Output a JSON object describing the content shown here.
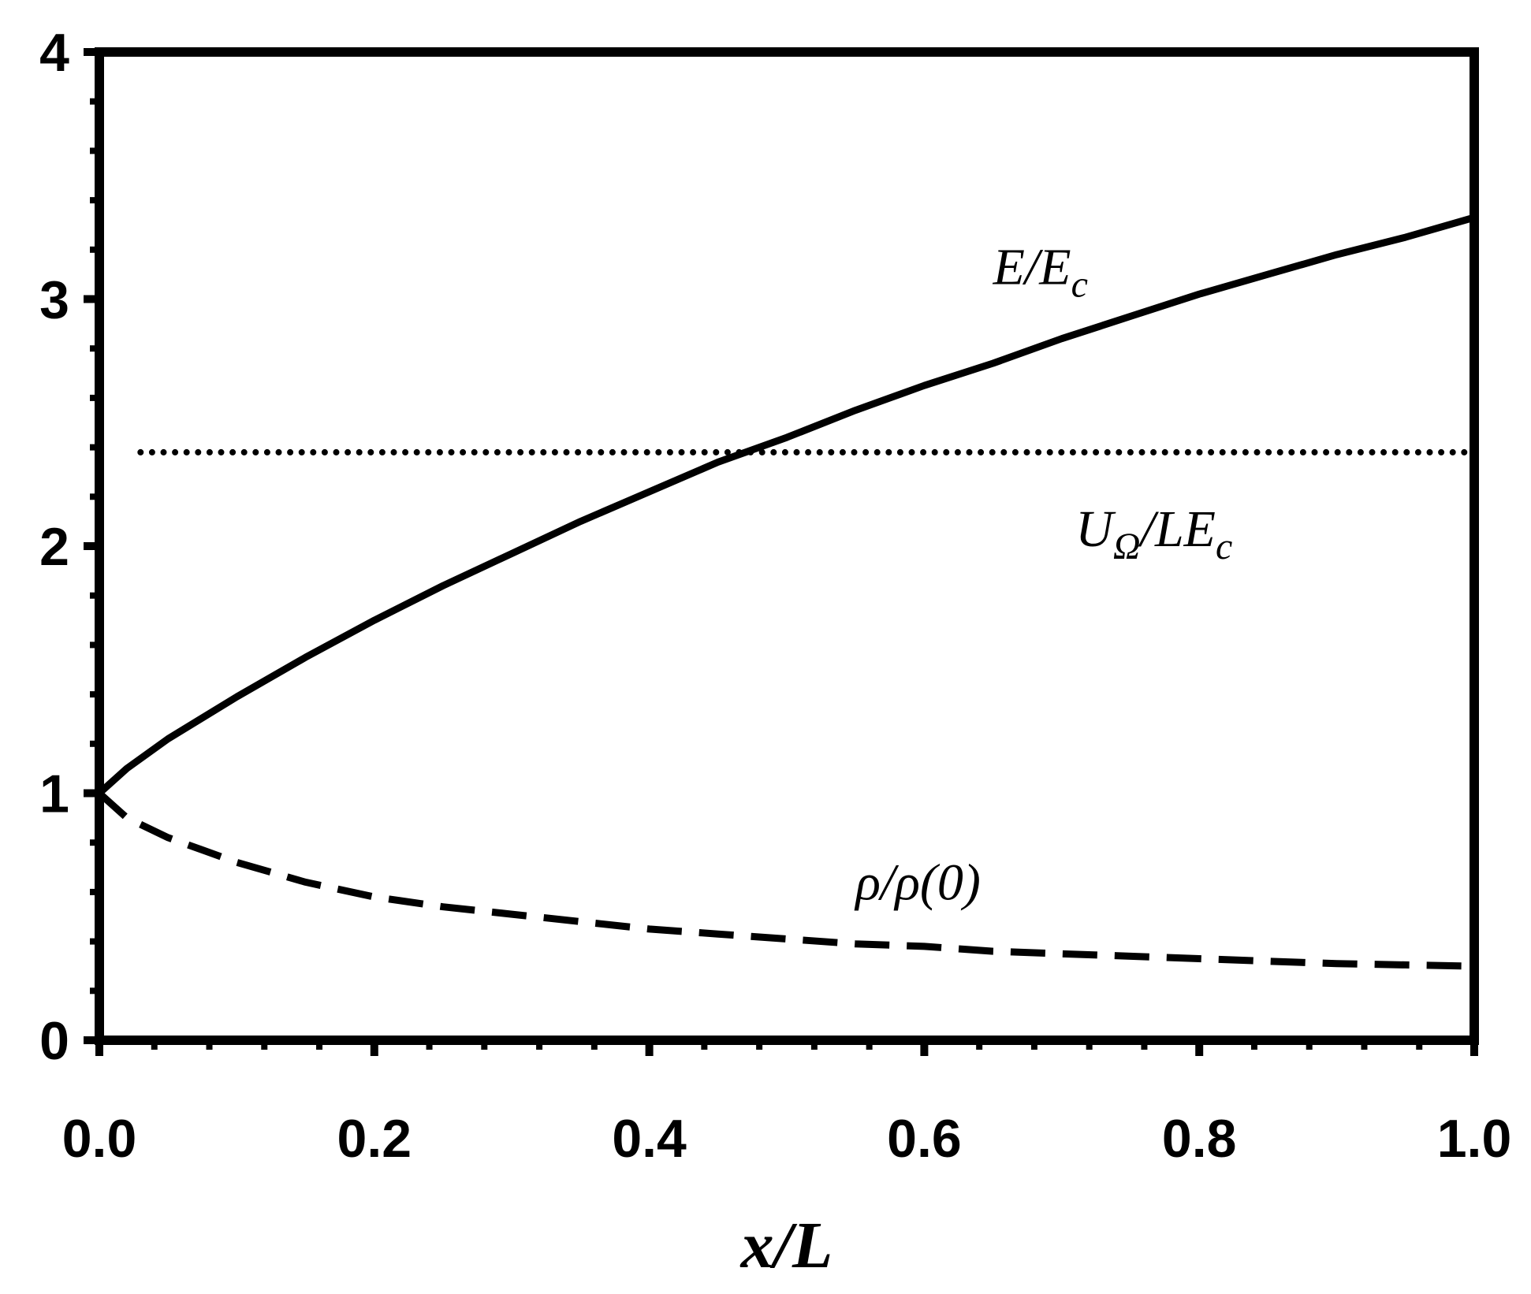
{
  "chart_data": {
    "type": "line",
    "xlabel": "x/L",
    "ylabel": "",
    "xlim": [
      0,
      1
    ],
    "ylim": [
      0,
      4
    ],
    "x_ticks": [
      "0.0",
      "0.2",
      "0.4",
      "0.6",
      "0.8",
      "1.0"
    ],
    "y_ticks": [
      "0",
      "1",
      "2",
      "3",
      "4"
    ],
    "grid": false,
    "series": [
      {
        "style": "solid",
        "color": "#000000",
        "x": [
          0,
          0.02,
          0.05,
          0.1,
          0.15,
          0.2,
          0.25,
          0.3,
          0.35,
          0.4,
          0.45,
          0.5,
          0.55,
          0.6,
          0.65,
          0.7,
          0.75,
          0.8,
          0.85,
          0.9,
          0.95,
          1.0
        ],
        "y": [
          1.0,
          1.1,
          1.22,
          1.39,
          1.55,
          1.7,
          1.84,
          1.97,
          2.1,
          2.22,
          2.34,
          2.44,
          2.55,
          2.65,
          2.74,
          2.84,
          2.93,
          3.02,
          3.1,
          3.18,
          3.25,
          3.33
        ]
      },
      {
        "style": "dotted",
        "color": "#000000",
        "x": [
          0.03,
          1.0
        ],
        "y": [
          2.38,
          2.38
        ]
      },
      {
        "style": "dashed",
        "color": "#000000",
        "x": [
          0,
          0.02,
          0.05,
          0.1,
          0.15,
          0.2,
          0.25,
          0.3,
          0.35,
          0.4,
          0.45,
          0.5,
          0.55,
          0.6,
          0.65,
          0.7,
          0.75,
          0.8,
          0.85,
          0.9,
          0.95,
          1.0
        ],
        "y": [
          1.0,
          0.9,
          0.82,
          0.72,
          0.64,
          0.58,
          0.54,
          0.51,
          0.48,
          0.45,
          0.43,
          0.41,
          0.39,
          0.38,
          0.36,
          0.35,
          0.34,
          0.33,
          0.32,
          0.31,
          0.305,
          0.3
        ]
      }
    ],
    "annotations": [
      {
        "main": "E/E",
        "sub": "c",
        "tail": "",
        "x": 0.65,
        "y": 3.06
      },
      {
        "main": "U",
        "sub": "Ω",
        "tail": "/LE",
        "sub2": "c",
        "x": 0.71,
        "y": 2.0
      },
      {
        "main": "ρ/ρ(0)",
        "sub": "",
        "tail": "",
        "x": 0.55,
        "y": 0.57
      }
    ]
  }
}
